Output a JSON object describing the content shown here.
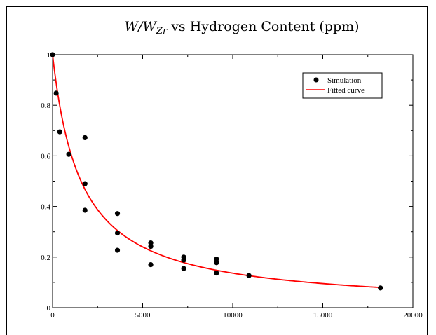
{
  "chart_data": {
    "type": "scatter",
    "title_main": "W/W",
    "title_sub": "Zr",
    "title_rest": " vs Hydrogen Content (ppm)",
    "xlabel": "",
    "ylabel": "",
    "xlim": [
      0,
      20000
    ],
    "ylim": [
      0,
      1
    ],
    "xticks": [
      0,
      5000,
      10000,
      15000,
      20000
    ],
    "yticks": [
      0,
      0.2,
      0.4,
      0.6,
      0.8,
      1
    ],
    "xtick_labels": [
      "0",
      "5000",
      "10000",
      "15000",
      "20000"
    ],
    "ytick_labels": [
      "0",
      "0.2",
      "0.4",
      "0.6",
      "0.8",
      "1"
    ],
    "grid": false,
    "legend_position": "top-right",
    "series": [
      {
        "name": "Simulation",
        "kind": "points",
        "color": "#000000",
        "x": [
          0,
          200,
          400,
          900,
          1800,
          1800,
          1800,
          3600,
          3600,
          3600,
          5450,
          5450,
          5450,
          7280,
          7280,
          7280,
          9100,
          9100,
          9100,
          10900,
          18200
        ],
        "y": [
          1.0,
          0.848,
          0.695,
          0.606,
          0.672,
          0.49,
          0.385,
          0.372,
          0.295,
          0.227,
          0.256,
          0.242,
          0.17,
          0.2,
          0.188,
          0.155,
          0.192,
          0.178,
          0.137,
          0.127,
          0.078
        ]
      },
      {
        "name": "Fitted curve",
        "kind": "line",
        "color": "#ff0000",
        "equation": "y = 1 / (1 + x / 1580)"
      }
    ]
  }
}
